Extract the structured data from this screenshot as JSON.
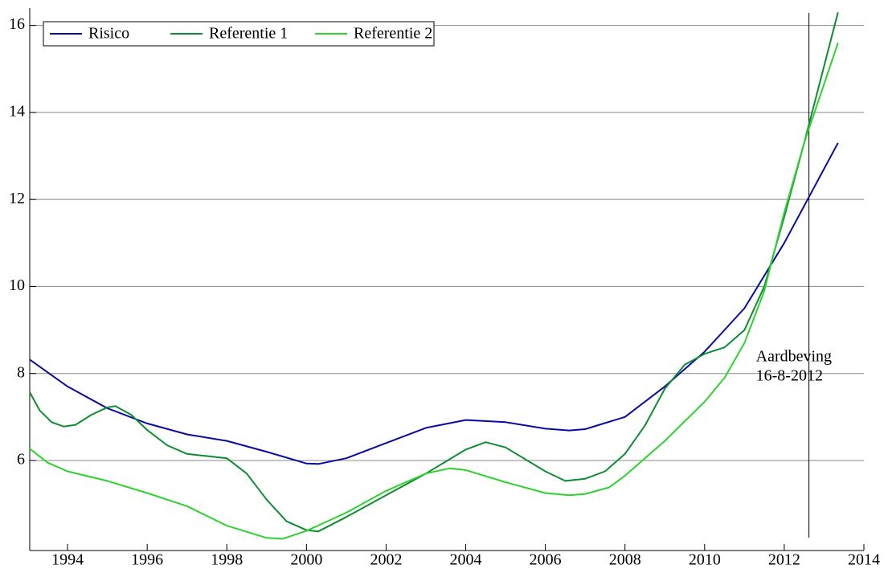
{
  "chart_data": {
    "type": "line",
    "series": [
      {
        "name": "Risico",
        "color": "#0a0aa0",
        "x": [
          1993.05,
          1994,
          1995,
          1996,
          1997,
          1998,
          1999,
          2000,
          2000.3,
          2001,
          2002,
          2003,
          2004,
          2005,
          2006,
          2006.6,
          2007,
          2008,
          2009,
          2010,
          2011,
          2012,
          2013.35
        ],
        "values": [
          8.32,
          7.7,
          7.2,
          6.85,
          6.6,
          6.45,
          6.2,
          5.93,
          5.92,
          6.05,
          6.4,
          6.75,
          6.93,
          6.88,
          6.73,
          6.69,
          6.72,
          7.0,
          7.7,
          8.5,
          9.5,
          11.0,
          13.3
        ]
      },
      {
        "name": "Referentie 1",
        "color": "#0f8c32",
        "x": [
          1993.05,
          1993.3,
          1993.6,
          1993.9,
          1994.2,
          1994.6,
          1995,
          1995.2,
          1995.6,
          1996,
          1996.5,
          1997,
          1997.5,
          1998,
          1998.5,
          1999,
          1999.5,
          2000,
          2000.3,
          2001,
          2002,
          2003,
          2004,
          2004.5,
          2005,
          2006,
          2006.5,
          2007,
          2007.5,
          2008,
          2008.5,
          2009,
          2009.5,
          2010,
          2010.5,
          2011,
          2011.5,
          2012,
          2012.5,
          2013.35
        ],
        "values": [
          7.57,
          7.15,
          6.88,
          6.78,
          6.82,
          7.05,
          7.22,
          7.25,
          7.05,
          6.7,
          6.35,
          6.15,
          6.1,
          6.05,
          5.7,
          5.1,
          4.6,
          4.4,
          4.37,
          4.7,
          5.2,
          5.7,
          6.25,
          6.42,
          6.3,
          5.75,
          5.53,
          5.58,
          5.75,
          6.15,
          6.8,
          7.65,
          8.2,
          8.45,
          8.6,
          9.0,
          10.0,
          11.6,
          13.3,
          16.3
        ]
      },
      {
        "name": "Referentie 2",
        "color": "#2ed22e",
        "x": [
          1993.05,
          1993.5,
          1994,
          1995,
          1996,
          1997,
          1998,
          1999,
          1999.4,
          2000,
          2001,
          2002,
          2003,
          2003.6,
          2004,
          2005,
          2006,
          2006.6,
          2007,
          2007.6,
          2008,
          2009,
          2010,
          2010.5,
          2011,
          2011.5,
          2012,
          2012.5,
          2013.35
        ],
        "values": [
          6.27,
          5.95,
          5.75,
          5.53,
          5.25,
          4.95,
          4.5,
          4.22,
          4.2,
          4.38,
          4.8,
          5.3,
          5.7,
          5.82,
          5.78,
          5.5,
          5.25,
          5.2,
          5.23,
          5.38,
          5.65,
          6.45,
          7.35,
          7.9,
          8.7,
          9.9,
          11.7,
          13.3,
          15.6
        ]
      }
    ],
    "xlim": [
      1993.05,
      2014
    ],
    "xticks": [
      1994,
      1996,
      1998,
      2000,
      2002,
      2004,
      2006,
      2008,
      2010,
      2012,
      2014
    ],
    "ylim": [
      3.93,
      16.4
    ],
    "yticks": [
      6,
      8,
      10,
      12,
      14,
      16
    ],
    "grid": true,
    "legend": "top-left",
    "annotations": [
      {
        "x": 2012.62,
        "text": [
          "Aardbeving",
          "16-8-2012"
        ]
      }
    ]
  }
}
